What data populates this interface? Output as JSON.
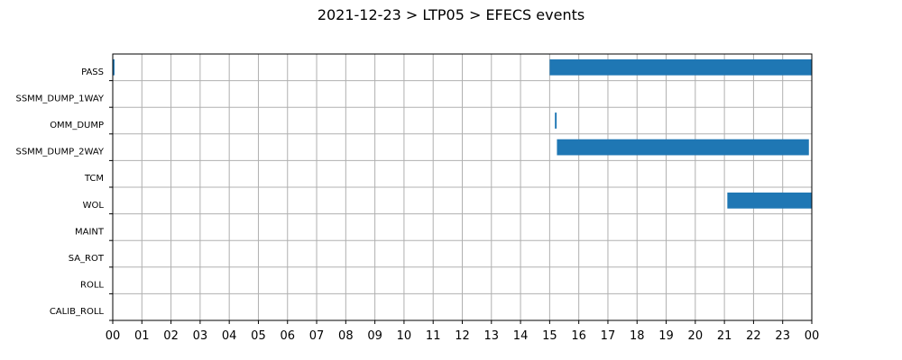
{
  "chart_data": {
    "type": "bar",
    "orientation": "horizontal-timeline",
    "title": "2021-12-23 > LTP05 > EFECS events",
    "xlabel": "",
    "ylabel": "",
    "x_unit": "hour",
    "xlim": [
      0,
      24
    ],
    "grid": true,
    "categories": [
      "PASS",
      "SSMM_DUMP_1WAY",
      "OMM_DUMP",
      "SSMM_DUMP_2WAY",
      "TCM",
      "WOL",
      "MAINT",
      "SA_ROT",
      "ROLL",
      "CALIB_ROLL"
    ],
    "x_tick_labels": [
      "00",
      "01",
      "02",
      "03",
      "04",
      "05",
      "06",
      "07",
      "08",
      "09",
      "10",
      "11",
      "12",
      "13",
      "14",
      "15",
      "16",
      "17",
      "18",
      "19",
      "20",
      "21",
      "22",
      "23",
      "00"
    ],
    "events": [
      {
        "category": "PASS",
        "start": 0.0,
        "end": 0.06
      },
      {
        "category": "PASS",
        "start": 15.0,
        "end": 24.0
      },
      {
        "category": "OMM_DUMP",
        "start": 15.18,
        "end": 15.24
      },
      {
        "category": "SSMM_DUMP_2WAY",
        "start": 15.25,
        "end": 23.9
      },
      {
        "category": "WOL",
        "start": 21.1,
        "end": 24.0
      }
    ],
    "bar_color": "#1f77b4",
    "grid_color": "#b0b0b0"
  }
}
